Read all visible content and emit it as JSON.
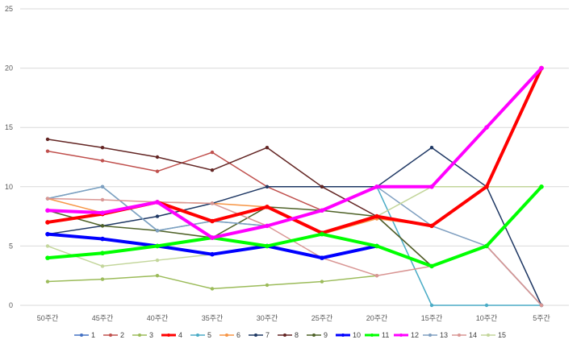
{
  "chart_data": {
    "type": "line",
    "title": "",
    "xlabel": "",
    "ylabel": "",
    "ylim": [
      0,
      25
    ],
    "yticks": [
      "0",
      "5",
      "10",
      "15",
      "20",
      "25"
    ],
    "categories": [
      "50주간",
      "45주간",
      "40주간",
      "35주간",
      "30주간",
      "25주간",
      "20주간",
      "15주간",
      "10주간",
      "5주간"
    ],
    "grid": "horizontal",
    "legend": "bottom",
    "series": [
      {
        "name": "1",
        "color": "#4472C4",
        "thick": false,
        "values": [
          6,
          5.6,
          5,
          4.3,
          5,
          4,
          5,
          null,
          null,
          null
        ]
      },
      {
        "name": "2",
        "color": "#C0504D",
        "thick": false,
        "values": [
          13,
          12.2,
          11.3,
          12.9,
          10,
          8,
          10,
          null,
          null,
          null
        ]
      },
      {
        "name": "3",
        "color": "#9BBB59",
        "thick": false,
        "values": [
          2,
          2.2,
          2.5,
          1.4,
          1.7,
          2,
          2.5,
          null,
          null,
          null
        ]
      },
      {
        "name": "4",
        "color": "#FF0000",
        "thick": true,
        "values": [
          7,
          7.7,
          8.7,
          7.1,
          8.3,
          6.1,
          7.5,
          6.7,
          10,
          20
        ]
      },
      {
        "name": "5",
        "color": "#4BACC6",
        "thick": false,
        "values": [
          9,
          10,
          6.3,
          7.1,
          6.7,
          8,
          10,
          0,
          0,
          0
        ]
      },
      {
        "name": "6",
        "color": "#F79646",
        "thick": false,
        "values": [
          9,
          7.8,
          8.7,
          8.6,
          8.3,
          6,
          7.3,
          6.7,
          10,
          20
        ]
      },
      {
        "name": "7",
        "color": "#1F3864",
        "thick": false,
        "values": [
          6,
          6.7,
          7.5,
          8.6,
          10,
          10,
          10,
          13.3,
          10,
          0
        ]
      },
      {
        "name": "8",
        "color": "#632523",
        "thick": false,
        "values": [
          14,
          13.3,
          12.5,
          11.4,
          13.3,
          10,
          7.5,
          3.3,
          5,
          0
        ]
      },
      {
        "name": "9",
        "color": "#4F6228",
        "thick": false,
        "values": [
          8,
          6.7,
          6.3,
          5.7,
          8.3,
          8,
          7.5,
          3.3,
          5,
          10
        ]
      },
      {
        "name": "10",
        "color": "#0000FF",
        "thick": true,
        "values": [
          6,
          5.6,
          5,
          4.3,
          5,
          4,
          5,
          null,
          null,
          null
        ]
      },
      {
        "name": "11",
        "color": "#00FF00",
        "thick": true,
        "values": [
          4,
          4.4,
          5,
          5.7,
          5,
          6,
          5,
          3.3,
          5,
          10
        ]
      },
      {
        "name": "12",
        "color": "#FF00FF",
        "thick": true,
        "values": [
          8,
          7.8,
          8.7,
          5.7,
          6.7,
          8,
          10,
          10,
          15,
          20
        ]
      },
      {
        "name": "13",
        "color": "#7F9FC0",
        "thick": false,
        "values": [
          9,
          10,
          6.3,
          7.1,
          6.7,
          8,
          10,
          6.7,
          5,
          0
        ]
      },
      {
        "name": "14",
        "color": "#D99694",
        "thick": false,
        "values": [
          9,
          8.9,
          8.7,
          8.6,
          6.7,
          4,
          2.5,
          3.3,
          5,
          0
        ]
      },
      {
        "name": "15",
        "color": "#C3D69B",
        "thick": false,
        "values": [
          5,
          3.3,
          3.8,
          4.3,
          5,
          6,
          7.5,
          10,
          10,
          10
        ]
      }
    ]
  }
}
